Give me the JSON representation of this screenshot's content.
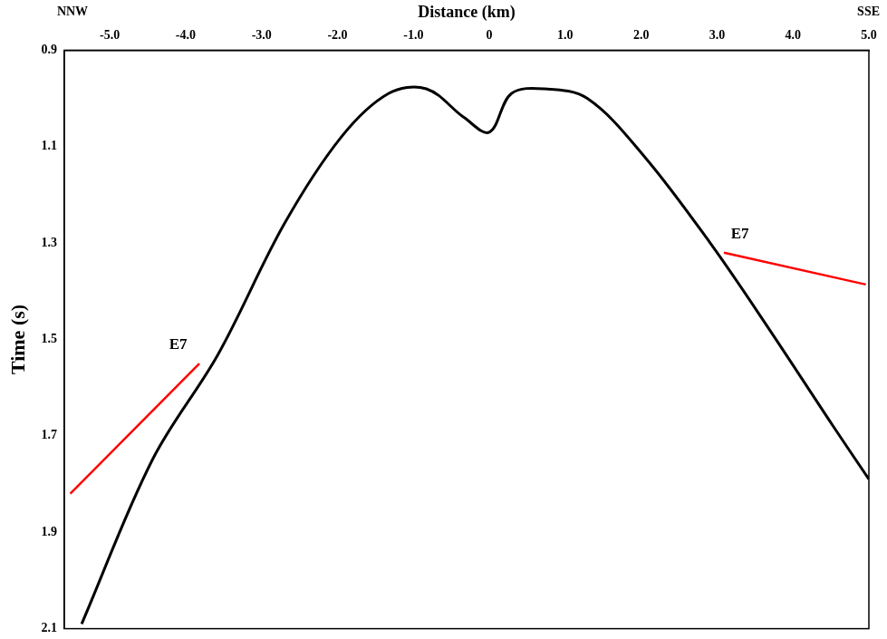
{
  "chart_data": {
    "type": "line",
    "x_label": "Distance (km)",
    "y_label": "Time (s)",
    "direction_labels": [
      "NNW",
      "SSE"
    ],
    "xlim": [
      -5.6,
      5.0
    ],
    "xticks": [
      {
        "value": -5,
        "label": "-5.0"
      },
      {
        "value": -4,
        "label": "-4.0"
      },
      {
        "value": -3,
        "label": "-3.0"
      },
      {
        "value": -2,
        "label": "-2.0"
      },
      {
        "value": -1,
        "label": "-1.0"
      },
      0,
      {
        "value": 1,
        "label": "1.0"
      },
      {
        "value": 2,
        "label": "2.0"
      },
      {
        "value": 3,
        "label": "3.0"
      },
      {
        "value": 4,
        "label": "4.0"
      },
      {
        "value": 5,
        "label": "5.0"
      }
    ],
    "ylim": [
      2.1,
      0.9
    ],
    "yticks": [
      0.9,
      1.1,
      1.3,
      1.5,
      1.7,
      1.9,
      2.1
    ],
    "grid": false,
    "series": [
      {
        "color": "#000000",
        "x": [
          -5.37,
          -4.44,
          -3.57,
          -2.7,
          -1.95,
          -1.33,
          -0.83,
          -0.33,
          0.0,
          0.29,
          0.73,
          1.29,
          2.04,
          2.91,
          3.65,
          4.53,
          5.0
        ],
        "values": [
          2.09,
          1.75,
          1.53,
          1.26,
          1.08,
          0.99,
          0.98,
          1.04,
          1.07,
          0.99,
          0.98,
          1.0,
          1.12,
          1.3,
          1.47,
          1.68,
          1.79
        ]
      },
      {
        "color": "#ff0000",
        "x": [
          -5.52,
          -3.82
        ],
        "values": [
          1.82,
          1.55
        ]
      },
      {
        "color": "#ff0000",
        "x": [
          3.09,
          4.96
        ],
        "values": [
          1.32,
          1.386
        ]
      }
    ],
    "annotations": [
      {
        "text": "E7",
        "x": -4.1,
        "y": 1.51
      },
      {
        "text": "E7",
        "x": 3.3,
        "y": 1.28
      }
    ]
  }
}
